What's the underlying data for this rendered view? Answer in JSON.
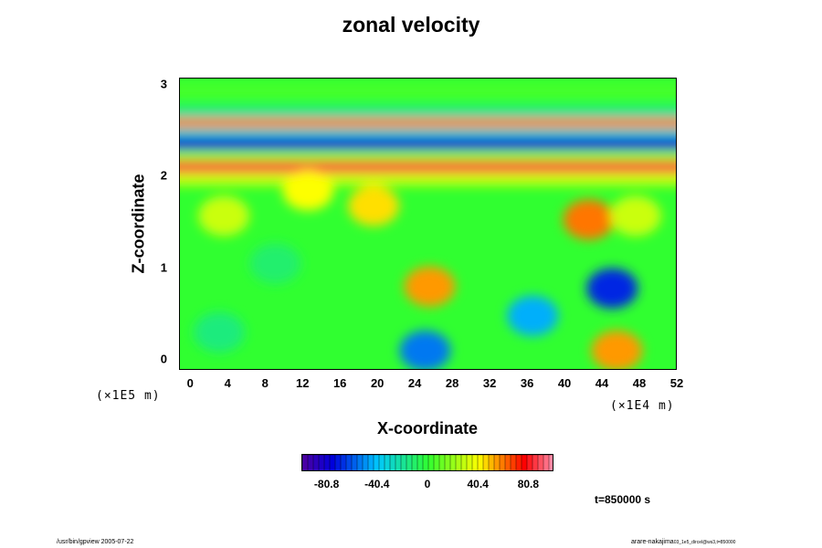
{
  "chart_data": {
    "type": "heatmap",
    "title": "zonal velocity",
    "xlabel": "X-coordinate",
    "ylabel": "Z-coordinate",
    "x_unit": "(×1E4 m)",
    "y_unit": "(×1E5 m)",
    "xlim": [
      -1.2,
      52
    ],
    "ylim": [
      -0.12,
      3.07
    ],
    "x_ticks": [
      "0",
      "4",
      "8",
      "12",
      "16",
      "20",
      "24",
      "28",
      "32",
      "36",
      "40",
      "44",
      "48",
      "52"
    ],
    "y_ticks": [
      "0",
      "1",
      "2",
      "3"
    ],
    "colorbar": {
      "range": [
        -101,
        101
      ],
      "tick_labels": [
        "-80.8",
        "-40.4",
        "0",
        "40.4",
        "80.8"
      ],
      "tick_values": [
        -80.8,
        -40.4,
        0,
        40.4,
        80.8
      ]
    },
    "bands": [
      {
        "z": 2.94,
        "velocity": 5
      },
      {
        "z": 2.68,
        "velocity": -25
      },
      {
        "z": 2.57,
        "velocity": 60
      },
      {
        "z": 2.46,
        "velocity": -30
      },
      {
        "z": 2.36,
        "velocity": -80
      },
      {
        "z": 2.2,
        "velocity": 20
      },
      {
        "z": 2.1,
        "velocity": 85
      },
      {
        "z": 1.97,
        "velocity": 30
      }
    ],
    "features": [
      {
        "x": 25.5,
        "z": 0.8,
        "velocity": 55
      },
      {
        "x": 45,
        "z": 0.78,
        "velocity": -70
      },
      {
        "x": 25,
        "z": 0.1,
        "velocity": -55
      },
      {
        "x": 45.5,
        "z": 0.1,
        "velocity": 55
      },
      {
        "x": 12.5,
        "z": 1.85,
        "velocity": 40
      },
      {
        "x": 19.5,
        "z": 1.68,
        "velocity": 45
      },
      {
        "x": 42.5,
        "z": 1.53,
        "velocity": 60
      },
      {
        "x": 36.5,
        "z": 0.48,
        "velocity": -45
      },
      {
        "x": 3.5,
        "z": 1.57,
        "velocity": 30
      },
      {
        "x": 47.5,
        "z": 1.57,
        "velocity": 30
      },
      {
        "x": 9,
        "z": 1.05,
        "velocity": -12
      },
      {
        "x": 3,
        "z": 0.3,
        "velocity": -15
      }
    ]
  },
  "time_label": "t=850000 s",
  "footer_left": "/usr/bin/gpview 2005-07-22",
  "footer_right": "arare-nakajima",
  "footer_right_small": "03_1e5_dircel@ws3,t=850000"
}
